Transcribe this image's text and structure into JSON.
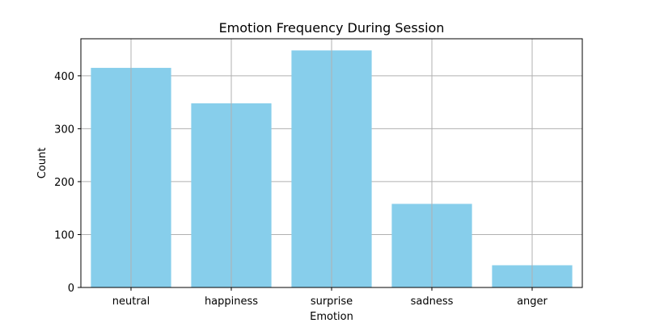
{
  "chart_data": {
    "type": "bar",
    "title": "Emotion Frequency During Session",
    "xlabel": "Emotion",
    "ylabel": "Count",
    "categories": [
      "neutral",
      "happiness",
      "surprise",
      "sadness",
      "anger"
    ],
    "values": [
      415,
      348,
      448,
      158,
      42
    ],
    "ylim": [
      0,
      470
    ],
    "yticks": [
      0,
      100,
      200,
      300,
      400
    ],
    "grid": true,
    "bar_color": "#87ceeb",
    "grid_color": "#b0b0b0"
  }
}
